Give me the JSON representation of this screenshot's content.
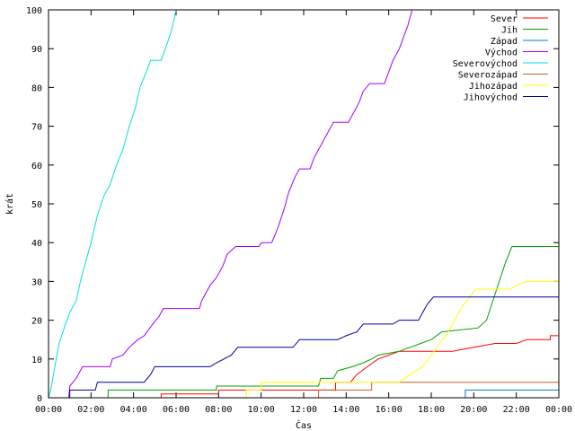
{
  "chart_data": {
    "type": "line",
    "title": "",
    "xlabel": "Čas",
    "ylabel": "krát",
    "xlim": [
      0,
      24
    ],
    "ylim": [
      0,
      100
    ],
    "x_ticks": [
      {
        "value": 0,
        "label": "00:00"
      },
      {
        "value": 2,
        "label": "02:00"
      },
      {
        "value": 4,
        "label": "04:00"
      },
      {
        "value": 6,
        "label": "06:00"
      },
      {
        "value": 8,
        "label": "08:00"
      },
      {
        "value": 10,
        "label": "10:00"
      },
      {
        "value": 12,
        "label": "12:00"
      },
      {
        "value": 14,
        "label": "14:00"
      },
      {
        "value": 16,
        "label": "16:00"
      },
      {
        "value": 18,
        "label": "18:00"
      },
      {
        "value": 20,
        "label": "20:00"
      },
      {
        "value": 22,
        "label": "22:00"
      },
      {
        "value": 24,
        "label": "00:00"
      }
    ],
    "y_ticks": [
      {
        "value": 0,
        "label": "0"
      },
      {
        "value": 10,
        "label": "10"
      },
      {
        "value": 20,
        "label": "20"
      },
      {
        "value": 30,
        "label": "30"
      },
      {
        "value": 40,
        "label": "40"
      },
      {
        "value": 50,
        "label": "50"
      },
      {
        "value": 60,
        "label": "60"
      },
      {
        "value": 70,
        "label": "70"
      },
      {
        "value": 80,
        "label": "80"
      },
      {
        "value": 90,
        "label": "90"
      },
      {
        "value": 100,
        "label": "100"
      }
    ],
    "grid": false,
    "legend_position": "top-right",
    "series": [
      {
        "name": "Sever",
        "color": "#ff0000",
        "points": [
          [
            0,
            0
          ],
          [
            5.3,
            0
          ],
          [
            5.3,
            1
          ],
          [
            8.0,
            1
          ],
          [
            8.0,
            2
          ],
          [
            13.5,
            2
          ],
          [
            13.5,
            4
          ],
          [
            14.2,
            4
          ],
          [
            14.5,
            6
          ],
          [
            15.0,
            8
          ],
          [
            15.5,
            10
          ],
          [
            16.0,
            11
          ],
          [
            16.5,
            12
          ],
          [
            18.0,
            12
          ],
          [
            19.0,
            12
          ],
          [
            20.0,
            13
          ],
          [
            21.0,
            14
          ],
          [
            22.0,
            14
          ],
          [
            22.5,
            15
          ],
          [
            23.6,
            15
          ],
          [
            23.6,
            16
          ],
          [
            24.0,
            16
          ]
        ]
      },
      {
        "name": "Jih",
        "color": "#00a000",
        "points": [
          [
            0,
            0
          ],
          [
            2.8,
            0
          ],
          [
            2.8,
            2
          ],
          [
            7.9,
            2
          ],
          [
            7.9,
            3
          ],
          [
            12.7,
            3
          ],
          [
            12.8,
            5
          ],
          [
            13.4,
            5
          ],
          [
            13.6,
            7
          ],
          [
            14.3,
            8
          ],
          [
            14.8,
            9
          ],
          [
            15.2,
            10
          ],
          [
            15.5,
            11
          ],
          [
            16.5,
            12
          ],
          [
            17.0,
            13
          ],
          [
            17.5,
            14
          ],
          [
            18.0,
            15
          ],
          [
            18.5,
            17
          ],
          [
            20.2,
            18
          ],
          [
            20.6,
            20
          ],
          [
            20.9,
            25
          ],
          [
            21.2,
            30
          ],
          [
            21.5,
            35
          ],
          [
            21.8,
            39
          ],
          [
            24.0,
            39
          ]
        ]
      },
      {
        "name": "Západ",
        "color": "#0080c0",
        "points": [
          [
            0,
            0
          ],
          [
            19.6,
            0
          ],
          [
            19.6,
            2
          ],
          [
            24.0,
            2
          ]
        ]
      },
      {
        "name": "Východ",
        "color": "#a000ff",
        "points": [
          [
            0,
            0
          ],
          [
            0.95,
            0
          ],
          [
            1.0,
            3
          ],
          [
            1.3,
            5
          ],
          [
            1.6,
            8
          ],
          [
            2.9,
            8
          ],
          [
            3.0,
            10
          ],
          [
            3.5,
            11
          ],
          [
            3.8,
            13
          ],
          [
            4.2,
            15
          ],
          [
            4.5,
            16
          ],
          [
            4.9,
            19
          ],
          [
            5.2,
            21
          ],
          [
            5.4,
            23
          ],
          [
            7.1,
            23
          ],
          [
            7.2,
            25
          ],
          [
            7.6,
            29
          ],
          [
            7.9,
            31
          ],
          [
            8.2,
            34
          ],
          [
            8.4,
            37
          ],
          [
            8.8,
            39
          ],
          [
            9.9,
            39
          ],
          [
            10.0,
            40
          ],
          [
            10.5,
            40
          ],
          [
            10.8,
            44
          ],
          [
            11.1,
            49
          ],
          [
            11.3,
            53
          ],
          [
            11.6,
            57
          ],
          [
            11.8,
            59
          ],
          [
            12.3,
            59
          ],
          [
            12.5,
            62
          ],
          [
            12.8,
            65
          ],
          [
            13.1,
            68
          ],
          [
            13.4,
            71
          ],
          [
            14.1,
            71
          ],
          [
            14.3,
            73
          ],
          [
            14.6,
            76
          ],
          [
            14.8,
            79
          ],
          [
            15.1,
            81
          ],
          [
            15.8,
            81
          ],
          [
            16.0,
            84
          ],
          [
            16.2,
            87
          ],
          [
            16.5,
            90
          ],
          [
            16.7,
            93
          ],
          [
            16.9,
            96
          ],
          [
            17.1,
            100
          ]
        ]
      },
      {
        "name": "Severovýchod",
        "color": "#00e0e0",
        "points": [
          [
            0,
            0
          ],
          [
            0.1,
            2
          ],
          [
            0.3,
            8
          ],
          [
            0.5,
            14
          ],
          [
            0.8,
            19
          ],
          [
            1.0,
            22
          ],
          [
            1.3,
            25
          ],
          [
            1.5,
            30
          ],
          [
            1.7,
            34
          ],
          [
            2.0,
            40
          ],
          [
            2.3,
            47
          ],
          [
            2.6,
            52
          ],
          [
            2.9,
            55
          ],
          [
            3.2,
            60
          ],
          [
            3.5,
            64
          ],
          [
            3.8,
            70
          ],
          [
            4.1,
            75
          ],
          [
            4.3,
            80
          ],
          [
            4.6,
            84
          ],
          [
            4.8,
            87
          ],
          [
            5.3,
            87
          ],
          [
            5.5,
            90
          ],
          [
            5.8,
            95
          ],
          [
            6.0,
            100
          ]
        ]
      },
      {
        "name": "Severozápad",
        "color": "#d06020",
        "points": [
          [
            0,
            0
          ],
          [
            12.7,
            0
          ],
          [
            12.7,
            2
          ],
          [
            15.2,
            2
          ],
          [
            15.2,
            4
          ],
          [
            24.0,
            4
          ]
        ]
      },
      {
        "name": "Jihozápad",
        "color": "#ffff00",
        "points": [
          [
            0,
            0
          ],
          [
            9.3,
            0
          ],
          [
            9.3,
            2
          ],
          [
            10.0,
            2
          ],
          [
            10.0,
            4
          ],
          [
            16.5,
            4
          ],
          [
            17.0,
            6
          ],
          [
            17.6,
            8
          ],
          [
            18.0,
            11
          ],
          [
            18.4,
            14
          ],
          [
            18.8,
            17
          ],
          [
            19.1,
            20
          ],
          [
            19.4,
            23
          ],
          [
            19.8,
            26
          ],
          [
            20.1,
            28
          ],
          [
            21.7,
            28
          ],
          [
            22.0,
            29
          ],
          [
            22.5,
            30
          ],
          [
            24.0,
            30
          ]
        ]
      },
      {
        "name": "Jihovýchod",
        "color": "#0000a0",
        "points": [
          [
            0,
            0
          ],
          [
            1.0,
            0
          ],
          [
            1.0,
            2
          ],
          [
            2.2,
            2
          ],
          [
            2.3,
            4
          ],
          [
            4.5,
            4
          ],
          [
            4.8,
            6
          ],
          [
            5.0,
            8
          ],
          [
            7.6,
            8
          ],
          [
            7.9,
            9
          ],
          [
            8.6,
            11
          ],
          [
            8.9,
            13
          ],
          [
            11.5,
            13
          ],
          [
            11.8,
            15
          ],
          [
            13.6,
            15
          ],
          [
            14.0,
            16
          ],
          [
            14.5,
            17
          ],
          [
            14.8,
            19
          ],
          [
            16.2,
            19
          ],
          [
            16.5,
            20
          ],
          [
            17.4,
            20
          ],
          [
            17.6,
            22
          ],
          [
            17.8,
            24
          ],
          [
            18.1,
            26
          ],
          [
            24.0,
            26
          ]
        ]
      }
    ]
  }
}
